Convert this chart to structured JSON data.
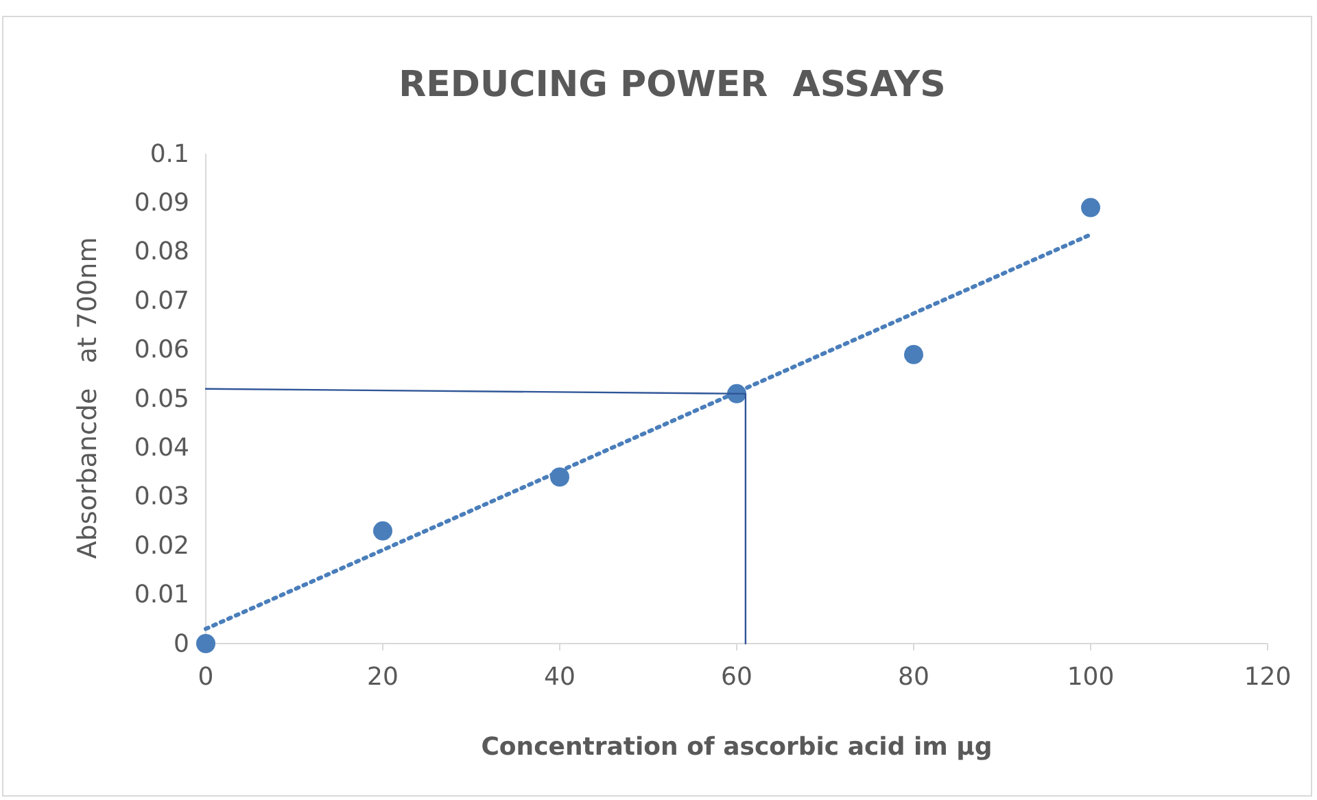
{
  "chart_data": {
    "type": "scatter",
    "title": "REDUCING POWER  ASSAYS",
    "xlabel": "Concentration of ascorbic acid im µg",
    "ylabel": "Absorbancde   at 700nm",
    "xlim": [
      0,
      120
    ],
    "xticks": [
      0,
      20,
      40,
      60,
      80,
      100,
      120
    ],
    "ylim": [
      0,
      0.1
    ],
    "yticks": [
      0,
      0.01,
      0.02,
      0.03,
      0.04,
      0.05,
      0.06,
      0.07,
      0.08,
      0.09,
      0.1
    ],
    "grid": false,
    "series": [
      {
        "color": "#4a7ebb",
        "marker": "circle",
        "x": [
          0,
          20,
          40,
          60,
          80,
          100
        ],
        "values": [
          0,
          0.023,
          0.034,
          0.051,
          0.059,
          0.089
        ]
      },
      {
        "type": "line",
        "color": "#4a7ebb",
        "line_style": "dotted",
        "marker": "none",
        "x": [
          0,
          100
        ],
        "values": [
          0.003,
          0.0835
        ]
      },
      {
        "type": "line",
        "color": "#2f5597",
        "line_style": "solid",
        "marker": "none",
        "x": [
          0,
          61,
          61
        ],
        "values": [
          0.052,
          0.051,
          0
        ]
      }
    ]
  }
}
